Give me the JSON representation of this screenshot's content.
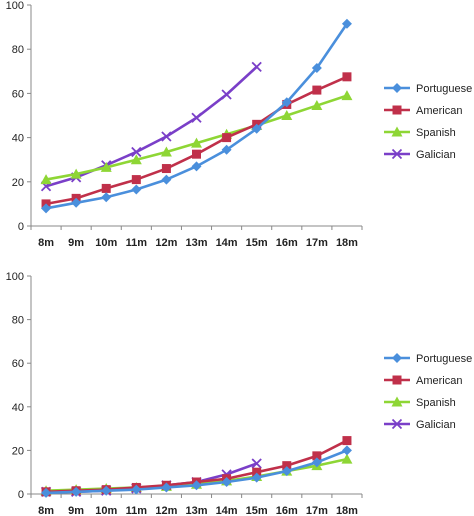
{
  "chart_data": [
    {
      "type": "line",
      "categories": [
        "8m",
        "9m",
        "10m",
        "11m",
        "12m",
        "13m",
        "14m",
        "15m",
        "16m",
        "17m",
        "18m"
      ],
      "ylim": [
        0,
        100
      ],
      "yticks": [
        0,
        20,
        40,
        60,
        80,
        100
      ],
      "grid": false,
      "legend": "right",
      "series": [
        {
          "name": "Portuguese",
          "color": "#4a8fdc",
          "marker": "diamond",
          "values": [
            8,
            10.5,
            13,
            16.5,
            21,
            27,
            34.5,
            44,
            56,
            71.5,
            91.5
          ]
        },
        {
          "name": "American",
          "color": "#c0304a",
          "marker": "square",
          "values": [
            10,
            12.5,
            17,
            21,
            26,
            32.5,
            40,
            46,
            55,
            61.5,
            67.5
          ]
        },
        {
          "name": "Spanish",
          "color": "#8ed635",
          "marker": "triangle",
          "values": [
            21,
            23.5,
            26.5,
            30,
            33.5,
            37.5,
            41.5,
            45.5,
            50,
            54.5,
            59
          ]
        },
        {
          "name": "Galician",
          "color": "#7a3fc8",
          "marker": "cross",
          "values": [
            18,
            22,
            27.5,
            33.5,
            40.5,
            49,
            59.5,
            72,
            null,
            null,
            null
          ]
        }
      ]
    },
    {
      "type": "line",
      "categories": [
        "8m",
        "9m",
        "10m",
        "11m",
        "12m",
        "13m",
        "14m",
        "15m",
        "16m",
        "17m",
        "18m"
      ],
      "ylim": [
        0,
        100
      ],
      "yticks": [
        0,
        20,
        40,
        60,
        80,
        100
      ],
      "grid": false,
      "legend": "right",
      "series": [
        {
          "name": "Portuguese",
          "color": "#4a8fdc",
          "marker": "diamond",
          "values": [
            0.5,
            1,
            1.5,
            2,
            3,
            4,
            5.5,
            7.5,
            10.5,
            14.5,
            20
          ]
        },
        {
          "name": "American",
          "color": "#c0304a",
          "marker": "square",
          "values": [
            1,
            1.5,
            2,
            3,
            4,
            5.5,
            7,
            10,
            13,
            17.5,
            24.5
          ]
        },
        {
          "name": "Spanish",
          "color": "#8ed635",
          "marker": "triangle",
          "values": [
            1.5,
            2,
            2.5,
            3,
            3.5,
            4.5,
            6,
            8,
            10.5,
            13,
            16
          ]
        },
        {
          "name": "Galician",
          "color": "#7a3fc8",
          "marker": "cross",
          "values": [
            1,
            1,
            1.5,
            2.5,
            4,
            5.5,
            9,
            14,
            null,
            null,
            null
          ]
        }
      ]
    }
  ]
}
